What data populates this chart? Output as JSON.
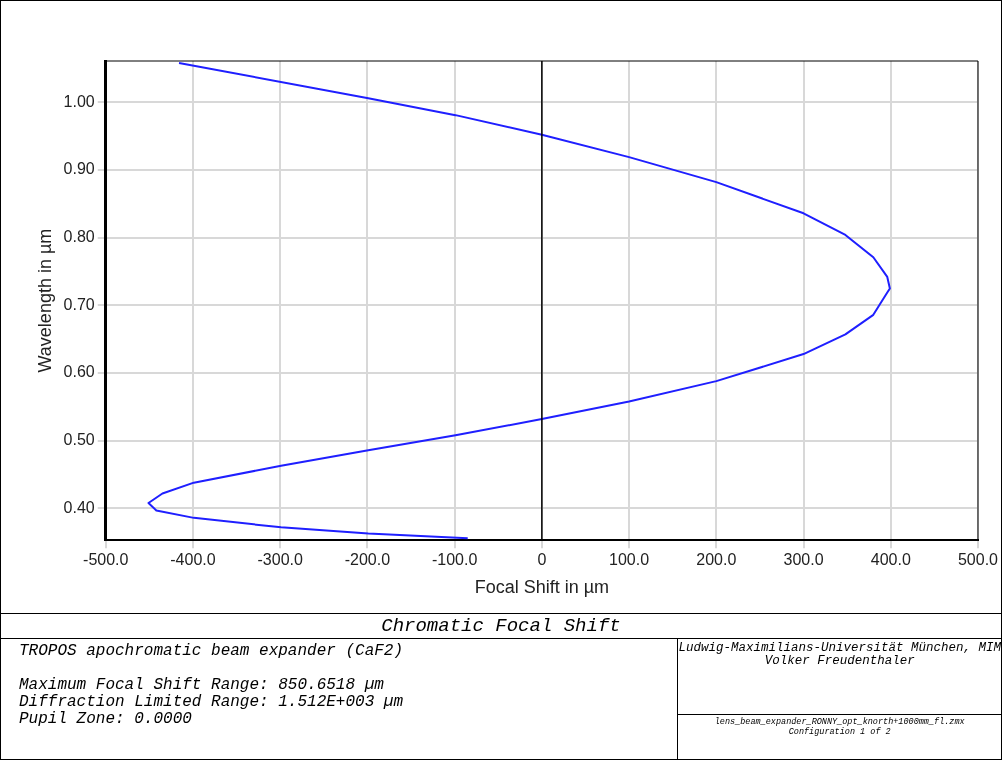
{
  "chart_data": {
    "type": "line",
    "title": "Chromatic Focal Shift",
    "xlabel": "Focal Shift in µm",
    "ylabel": "Wavelength in µm",
    "x": [
      -416,
      -199,
      -99,
      0,
      100,
      200,
      300,
      348,
      380,
      396,
      399,
      396,
      380,
      348,
      300,
      200,
      100,
      0,
      -99,
      -199,
      -299,
      -399,
      -435,
      -451,
      -442,
      -399,
      -299,
      -199,
      -85
    ],
    "series": [
      {
        "color": "#1f1fff",
        "values": [
          1.058,
          1.006,
          0.981,
          0.952,
          0.919,
          0.882,
          0.836,
          0.804,
          0.771,
          0.742,
          0.725,
          0.719,
          0.686,
          0.657,
          0.628,
          0.588,
          0.558,
          0.532,
          0.508,
          0.486,
          0.463,
          0.438,
          0.422,
          0.408,
          0.397,
          0.386,
          0.372,
          0.363,
          0.356
        ]
      }
    ],
    "xlim": [
      -500,
      500
    ],
    "xticks": [
      {
        "value": -500,
        "label": "-500.0"
      },
      {
        "value": -400,
        "label": "-400.0"
      },
      {
        "value": -300,
        "label": "-300.0"
      },
      {
        "value": -200,
        "label": "-200.0"
      },
      {
        "value": -100,
        "label": "-100.0"
      },
      {
        "value": 0,
        "label": "0"
      },
      {
        "value": 100,
        "label": "100.0"
      },
      {
        "value": 200,
        "label": "200.0"
      },
      {
        "value": 300,
        "label": "300.0"
      },
      {
        "value": 400,
        "label": "400.0"
      },
      {
        "value": 500,
        "label": "500.0"
      }
    ],
    "ylim": [
      0.353,
      1.061
    ],
    "yticks": [
      {
        "value": 0.4,
        "label": "0.40"
      },
      {
        "value": 0.5,
        "label": "0.50"
      },
      {
        "value": 0.6,
        "label": "0.60"
      },
      {
        "value": 0.7,
        "label": "0.70"
      },
      {
        "value": 0.8,
        "label": "0.80"
      },
      {
        "value": 0.9,
        "label": "0.90"
      },
      {
        "value": 1.0,
        "label": "1.00"
      }
    ],
    "ref_lines": [
      {
        "axis": "x",
        "value": 0,
        "color": "#000000"
      }
    ],
    "grid": true,
    "legend": false,
    "marker": "none",
    "line_style": "solid",
    "annotations": [
      "TROPOS apochromatic beam expander (CaF2)",
      "Maximum Focal Shift Range: 850.6518 µm",
      "Diffraction Limited Range: 1.512E+003 µm",
      "Pupil Zone: 0.0000",
      "Ludwig-Maximilians-Universität München, MIM",
      "Volker Freudenthaler",
      "lens_beam_expander_RONNY_opt_knorth+1000mm_fl.zmx",
      "Configuration 1 of 2"
    ]
  }
}
